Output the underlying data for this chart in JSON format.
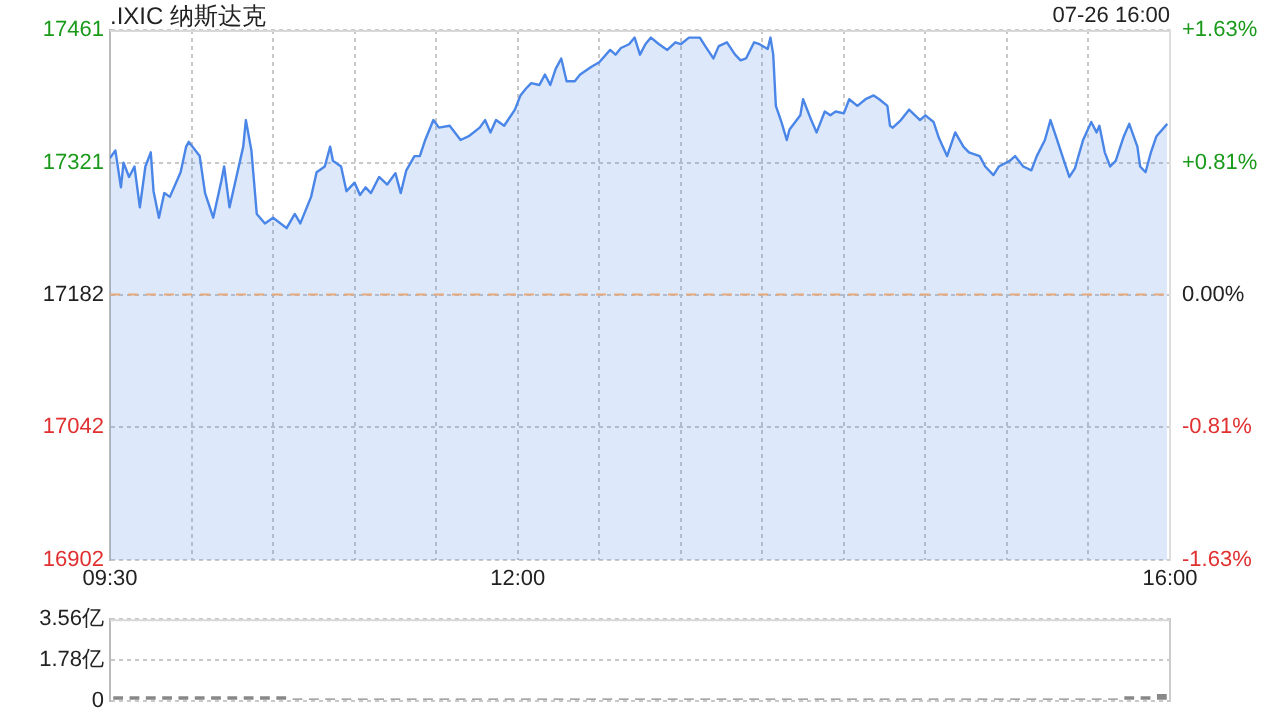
{
  "chart_data": [
    {
      "type": "area",
      "title": ".IXIC 纳斯达克",
      "subtitle": "07-26 16:00",
      "color": "#4a86e8",
      "marker": "none",
      "grid": true,
      "xlim": [
        9.5,
        16
      ],
      "xticks": [
        {
          "value": 9.5,
          "label": "09:30"
        },
        {
          "value": 10,
          "label": null
        },
        {
          "value": 10.5,
          "label": null
        },
        {
          "value": 11,
          "label": null
        },
        {
          "value": 11.5,
          "label": null
        },
        {
          "value": 12,
          "label": "12:00"
        },
        {
          "value": 12.5,
          "label": null
        },
        {
          "value": 13,
          "label": null
        },
        {
          "value": 13.5,
          "label": null
        },
        {
          "value": 14,
          "label": null
        },
        {
          "value": 14.5,
          "label": null
        },
        {
          "value": 15,
          "label": null
        },
        {
          "value": 15.5,
          "label": null
        },
        {
          "value": 16,
          "label": "16:00"
        }
      ],
      "ylim": [
        16902,
        17461
      ],
      "yticks": [
        16902,
        17042,
        17182,
        17321,
        17461
      ],
      "y2lim": [
        -1.63,
        1.63
      ],
      "y2ticks": [
        {
          "value": -1.63,
          "label": "-1.63%"
        },
        {
          "value": -0.81,
          "label": "-0.81%"
        },
        {
          "value": 0,
          "label": "0.00%"
        },
        {
          "value": 0.81,
          "label": "+0.81%"
        },
        {
          "value": 1.63,
          "label": "+1.63%"
        }
      ],
      "ref_lines": [
        {
          "axis": "y",
          "value": 17182,
          "color": "#e8a878",
          "line_style": "dashed"
        }
      ],
      "x": [
        9.5,
        9.533,
        9.567,
        9.583,
        9.617,
        9.65,
        9.683,
        9.717,
        9.75,
        9.767,
        9.8,
        9.833,
        9.867,
        9.933,
        9.967,
        9.983,
        10.05,
        10.083,
        10.133,
        10.183,
        10.2,
        10.233,
        10.267,
        10.317,
        10.333,
        10.367,
        10.4,
        10.45,
        10.5,
        10.583,
        10.633,
        10.667,
        10.733,
        10.767,
        10.817,
        10.85,
        10.867,
        10.917,
        10.95,
        11,
        11.033,
        11.067,
        11.1,
        11.15,
        11.2,
        11.25,
        11.283,
        11.317,
        11.367,
        11.4,
        11.433,
        11.483,
        11.517,
        11.583,
        11.65,
        11.7,
        11.767,
        11.8,
        11.833,
        11.867,
        11.917,
        11.983,
        12.017,
        12.05,
        12.083,
        12.133,
        12.167,
        12.2,
        12.233,
        12.267,
        12.3,
        12.35,
        12.383,
        12.45,
        12.5,
        12.567,
        12.6,
        12.633,
        12.683,
        12.717,
        12.75,
        12.783,
        12.817,
        12.867,
        12.917,
        12.967,
        13,
        13.05,
        13.117,
        13.15,
        13.2,
        13.233,
        13.283,
        13.333,
        13.367,
        13.4,
        13.45,
        13.483,
        13.533,
        13.55,
        13.567,
        13.583,
        13.617,
        13.65,
        13.667,
        13.733,
        13.75,
        13.8,
        13.833,
        13.883,
        13.917,
        13.95,
        14,
        14.033,
        14.083,
        14.133,
        14.183,
        14.217,
        14.267,
        14.283,
        14.3,
        14.35,
        14.4,
        14.467,
        14.5,
        14.55,
        14.583,
        14.633,
        14.683,
        14.733,
        14.767,
        14.833,
        14.867,
        14.917,
        14.95,
        15.017,
        15.05,
        15.1,
        15.15,
        15.183,
        15.233,
        15.267,
        15.3,
        15.35,
        15.383,
        15.417,
        15.467,
        15.517,
        15.55,
        15.567,
        15.6,
        15.633,
        15.667,
        15.717,
        15.75,
        15.8,
        15.817,
        15.85,
        15.883,
        15.917,
        15.983
      ],
      "values": [
        17326,
        17334,
        17295,
        17321,
        17306,
        17317,
        17274,
        17317,
        17332,
        17291,
        17263,
        17289,
        17285,
        17311,
        17338,
        17343,
        17328,
        17289,
        17263,
        17302,
        17317,
        17274,
        17300,
        17338,
        17366,
        17334,
        17267,
        17257,
        17263,
        17252,
        17267,
        17257,
        17285,
        17311,
        17317,
        17338,
        17323,
        17317,
        17291,
        17300,
        17287,
        17295,
        17289,
        17306,
        17298,
        17310,
        17289,
        17313,
        17328,
        17328,
        17345,
        17366,
        17358,
        17360,
        17345,
        17349,
        17358,
        17366,
        17353,
        17366,
        17360,
        17377,
        17392,
        17399,
        17405,
        17403,
        17414,
        17403,
        17420,
        17431,
        17407,
        17407,
        17414,
        17422,
        17427,
        17440,
        17435,
        17442,
        17446,
        17453,
        17435,
        17446,
        17453,
        17446,
        17440,
        17448,
        17446,
        17453,
        17453,
        17444,
        17431,
        17444,
        17448,
        17435,
        17429,
        17431,
        17448,
        17446,
        17441,
        17453,
        17435,
        17381,
        17364,
        17345,
        17356,
        17371,
        17388,
        17366,
        17353,
        17375,
        17371,
        17375,
        17373,
        17388,
        17381,
        17388,
        17392,
        17388,
        17381,
        17360,
        17358,
        17366,
        17377,
        17366,
        17371,
        17364,
        17347,
        17328,
        17353,
        17338,
        17332,
        17328,
        17317,
        17308,
        17317,
        17323,
        17328,
        17317,
        17313,
        17328,
        17345,
        17366,
        17349,
        17323,
        17306,
        17315,
        17345,
        17364,
        17353,
        17360,
        17332,
        17317,
        17323,
        17349,
        17362,
        17338,
        17317,
        17311,
        17332,
        17349,
        17362
      ]
    },
    {
      "type": "bar",
      "color": "#888888",
      "grid": "y",
      "tick_labels": "y",
      "categories": [
        null,
        null,
        null,
        null,
        null,
        null,
        null,
        null,
        null,
        null,
        null,
        null,
        null,
        null,
        null,
        null,
        null,
        null,
        null,
        null,
        null,
        null,
        null,
        null,
        null,
        null,
        null,
        null,
        null,
        null,
        null,
        null,
        null,
        null,
        null,
        null,
        null,
        null,
        null,
        null,
        null,
        null,
        null,
        null,
        null,
        null,
        null,
        null,
        null,
        null,
        null,
        null,
        null,
        null,
        null,
        null,
        null,
        null,
        null,
        null,
        null,
        null,
        null,
        null,
        null
      ],
      "ylim": [
        0,
        3.56
      ],
      "yticks": [
        0,
        {
          "value": 1.78,
          "label": "1.78亿"
        },
        {
          "value": 3.56,
          "label": "3.56亿"
        }
      ],
      "values": [
        0.2,
        0.2,
        0.2,
        0.2,
        0.2,
        0.2,
        0.2,
        0.2,
        0.2,
        0.2,
        0.2,
        0.1,
        0.1,
        0.1,
        0.1,
        0.1,
        0.1,
        0.1,
        0.1,
        0.1,
        0.1,
        0.1,
        0.1,
        0.1,
        0.1,
        0.1,
        0.1,
        0.1,
        0.1,
        0.1,
        0.1,
        0.1,
        0.1,
        0.1,
        0.1,
        0.1,
        0.1,
        0.1,
        0.1,
        0.1,
        0.1,
        0.1,
        0.1,
        0.1,
        0.1,
        0.1,
        0.1,
        0.1,
        0.1,
        0.1,
        0.1,
        0.1,
        0.1,
        0.1,
        0.1,
        0.1,
        0.1,
        0.1,
        0.1,
        0.1,
        0.1,
        0.1,
        0.2,
        0.2,
        0.3
      ]
    }
  ]
}
